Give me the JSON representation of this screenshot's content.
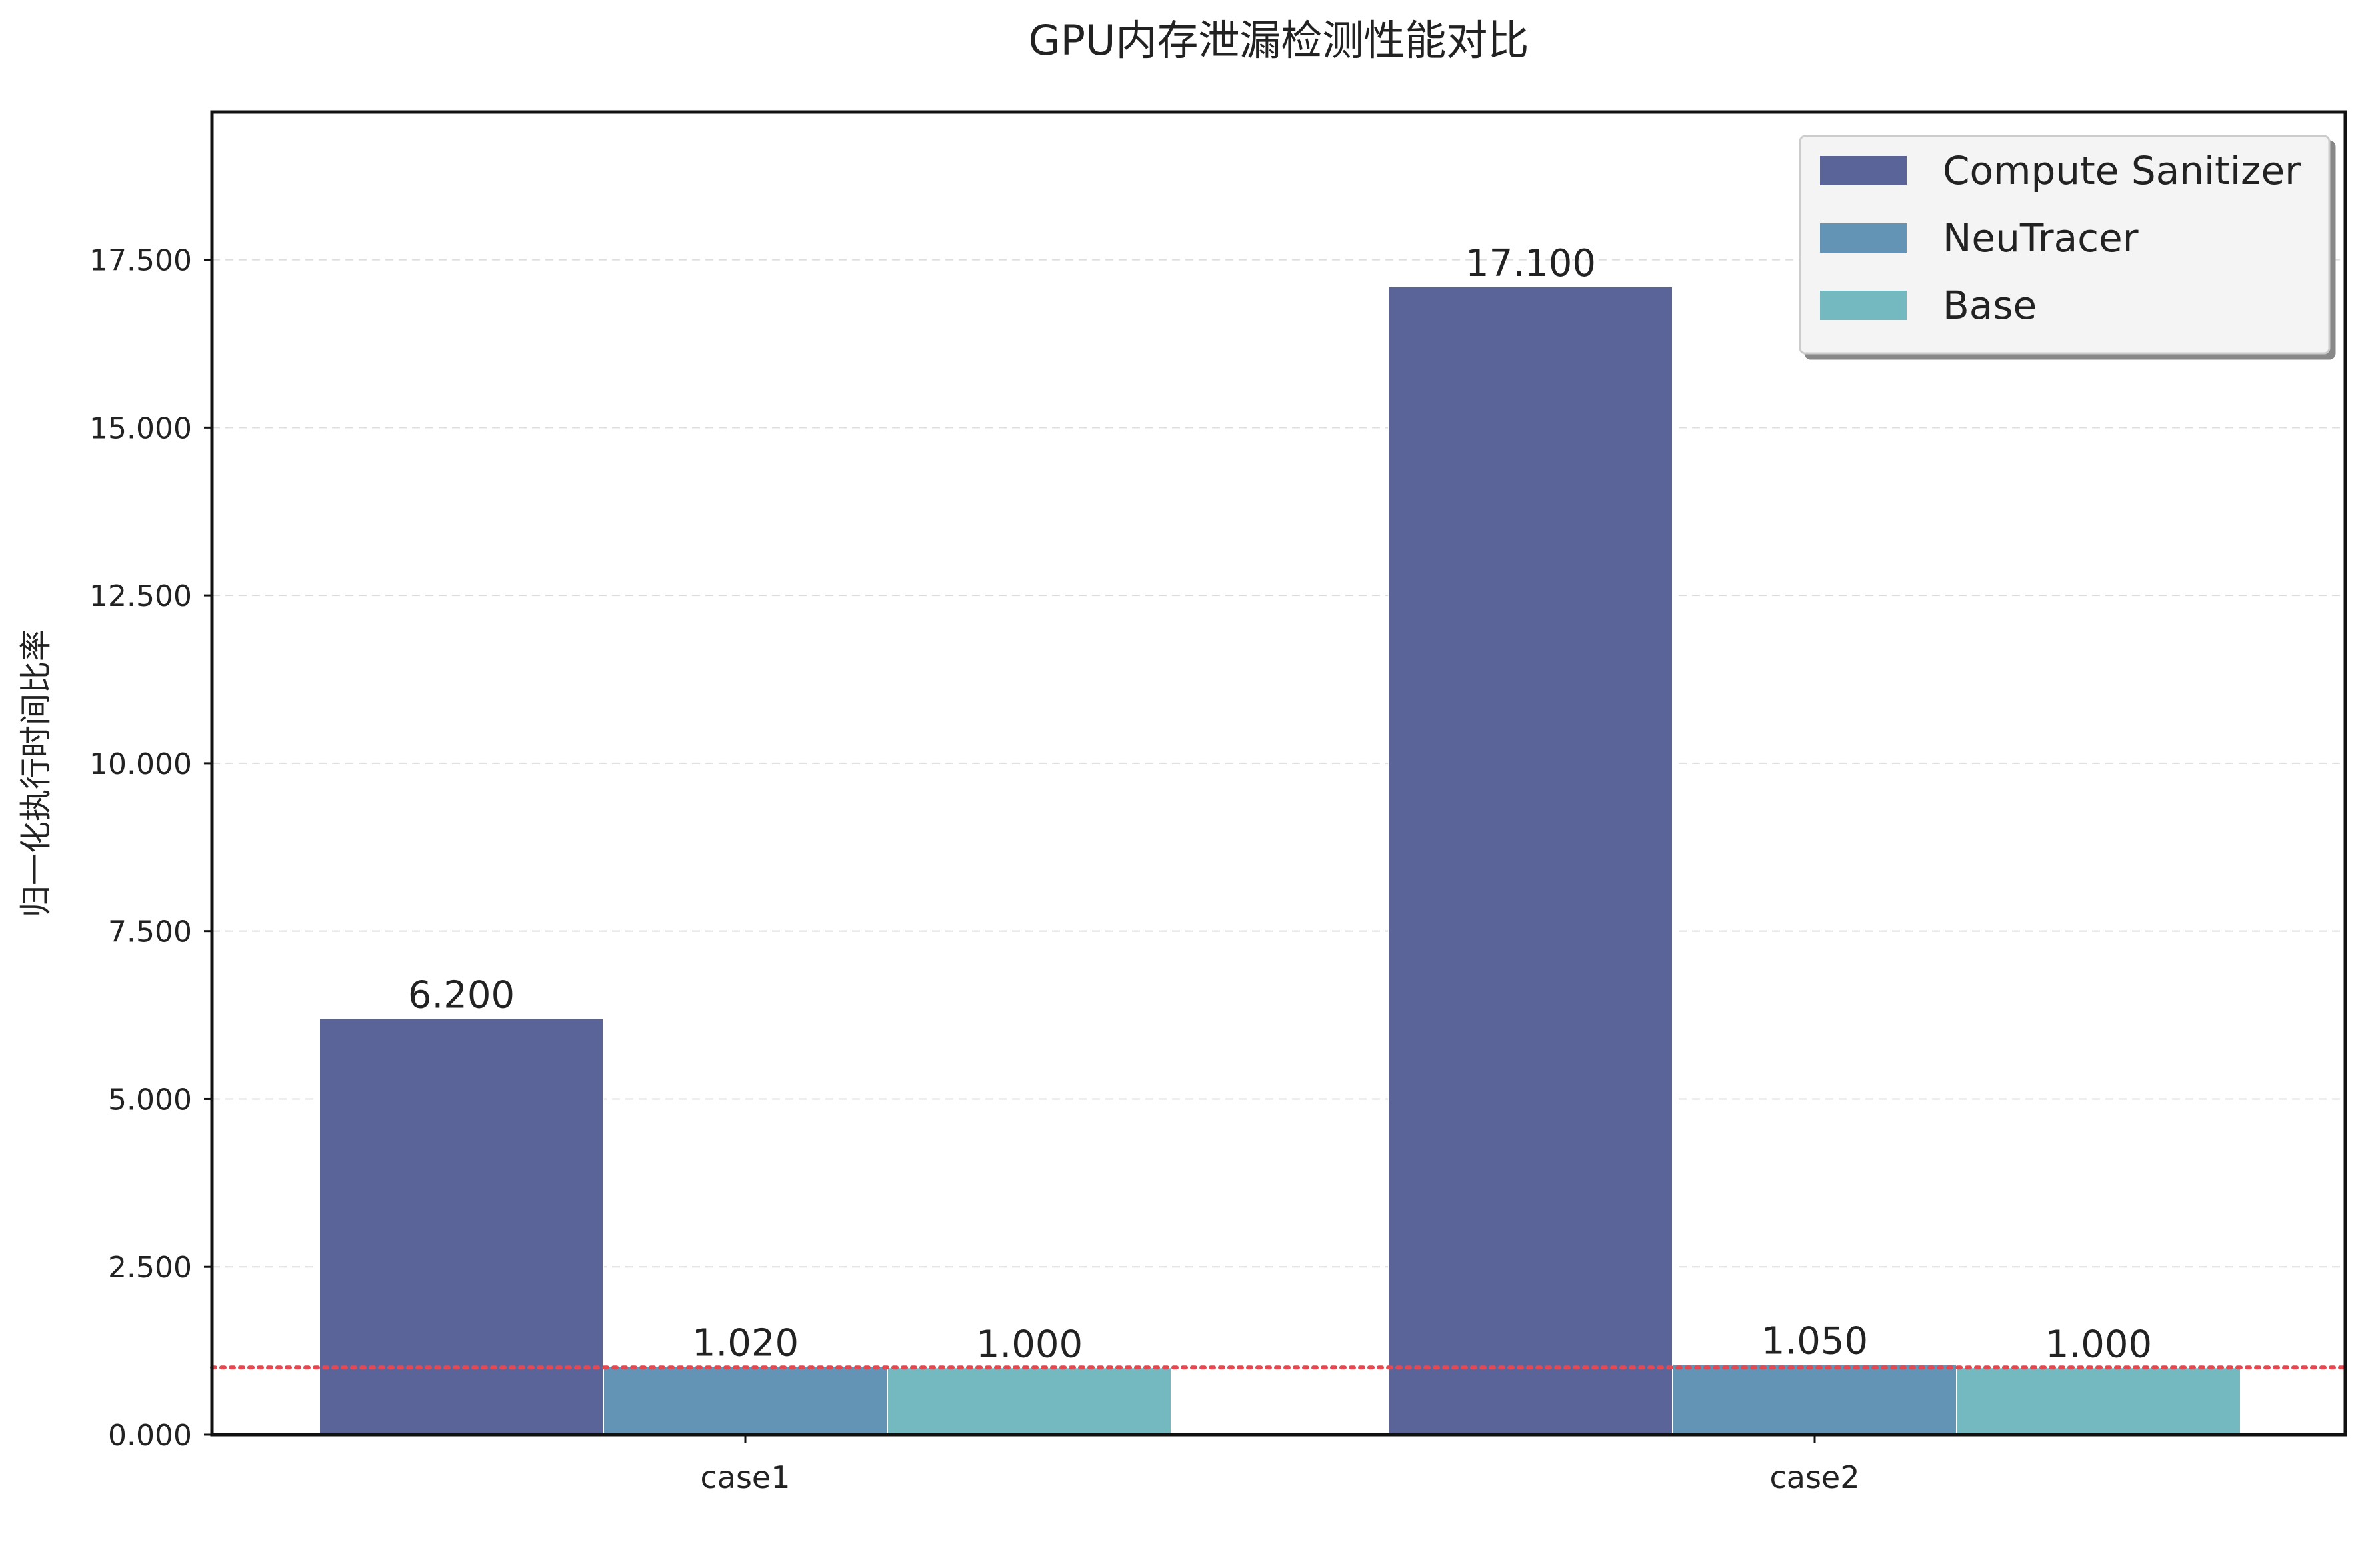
{
  "chart_data": {
    "type": "bar",
    "title": "GPU内存泄漏检测性能对比",
    "ylabel": "归一化执行时间比率",
    "xlabel": "",
    "categories": [
      "case1",
      "case2"
    ],
    "series": [
      {
        "name": "Compute Sanitizer",
        "values": [
          6.2,
          17.1
        ],
        "labels": [
          "6.200",
          "17.100"
        ],
        "color": "#5b6499"
      },
      {
        "name": "NeuTracer",
        "values": [
          1.02,
          1.05
        ],
        "labels": [
          "1.020",
          "1.050"
        ],
        "color": "#6394b6"
      },
      {
        "name": "Base",
        "values": [
          1.0,
          1.0
        ],
        "labels": [
          "1.000",
          "1.000"
        ],
        "color": "#74b8c0"
      }
    ],
    "ylim": [
      0,
      19.7
    ],
    "yticks": [
      0,
      2.5,
      5,
      7.5,
      10,
      12.5,
      15,
      17.5
    ],
    "ytick_labels": [
      "0.000",
      "2.500",
      "5.000",
      "7.500",
      "10.000",
      "12.500",
      "15.000",
      "17.500"
    ],
    "baseline": {
      "value": 1.0,
      "color": "#e8474f",
      "style": "dotted"
    },
    "grid": "y-dashed",
    "legend_position": "top-right"
  }
}
